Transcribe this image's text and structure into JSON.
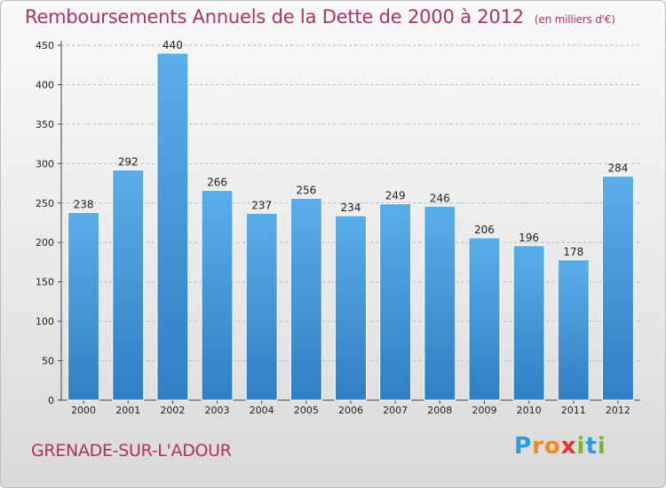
{
  "title": "Remboursements Annuels de la Dette de 2000 à 2012",
  "subtitle": "(en milliers d'€)",
  "city": "GRENADE-SUR-L'ADOUR",
  "logo": {
    "letters": [
      {
        "char": "P",
        "color": "#2e9ad8"
      },
      {
        "char": "r",
        "color": "#f08a1c"
      },
      {
        "char": "o",
        "color": "#f08a1c"
      },
      {
        "char": "x",
        "color": "#e5362c"
      },
      {
        "char": "i",
        "color": "#7cb82f"
      },
      {
        "char": "t",
        "color": "#2e9ad8"
      },
      {
        "char": "i",
        "color": "#7cb82f"
      }
    ]
  },
  "colors": {
    "title": "#b0306a",
    "bar_top": "#5aaee8",
    "bar_bottom": "#2f7fc4",
    "grid": "#b8b8b8"
  },
  "chart_data": {
    "type": "bar",
    "categories": [
      "2000",
      "2001",
      "2002",
      "2003",
      "2004",
      "2005",
      "2006",
      "2007",
      "2008",
      "2009",
      "2010",
      "2011",
      "2012"
    ],
    "values": [
      238,
      292,
      440,
      266,
      237,
      256,
      234,
      249,
      246,
      206,
      196,
      178,
      284
    ],
    "ylim": [
      0,
      450
    ],
    "yticks": [
      0,
      50,
      100,
      150,
      200,
      250,
      300,
      350,
      400,
      450
    ],
    "grid": true
  }
}
